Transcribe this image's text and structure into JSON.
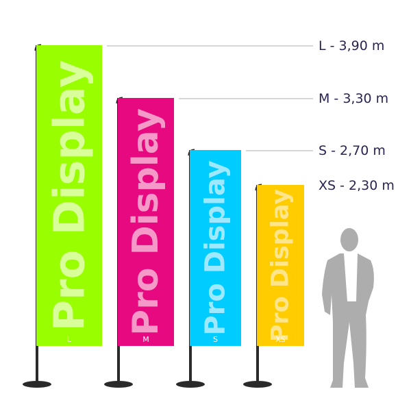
{
  "brand_text": "Pro Display",
  "colors": {
    "pole": "#2b2a2a",
    "leader_line": "#c8c8c8",
    "label_text": "#2a2350",
    "person": "#adadad"
  },
  "flags": [
    {
      "size": "L",
      "height_label": "L - 3,90 m",
      "color": "#99ff00",
      "text_color": "#d9ff9a",
      "leader": true
    },
    {
      "size": "M",
      "height_label": "M - 3,30 m",
      "color": "#e6097f",
      "text_color": "#f59ac8",
      "leader": true
    },
    {
      "size": "S",
      "height_label": "S - 2,70 m",
      "color": "#00ccff",
      "text_color": "#9ee9ff",
      "leader": true
    },
    {
      "size": "XS",
      "height_label": "XS - 2,30 m",
      "color": "#ffcc00",
      "text_color": "#ffe58a",
      "leader": false
    }
  ],
  "person_icon": "standing-man-silhouette"
}
